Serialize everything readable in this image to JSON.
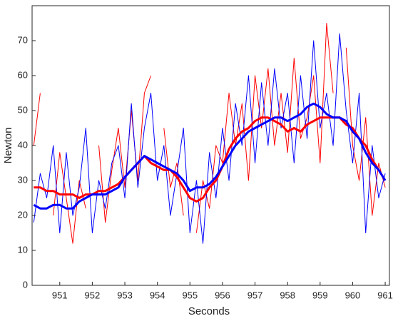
{
  "chart_data": {
    "type": "line",
    "x_label": "Seconds",
    "y_label": "Newton",
    "xlim": [
      950.15,
      961.13
    ],
    "ylim": [
      0,
      80
    ],
    "xticks": [
      951,
      952,
      953,
      954,
      955,
      956,
      957,
      958,
      959,
      960,
      961
    ],
    "yticks": [
      0,
      10,
      20,
      30,
      40,
      50,
      60,
      70
    ],
    "x": [
      950.2,
      950.4,
      950.6,
      950.8,
      951.0,
      951.2,
      951.4,
      951.6,
      951.8,
      952.0,
      952.2,
      952.4,
      952.6,
      952.8,
      953.0,
      953.2,
      953.4,
      953.6,
      953.8,
      954.0,
      954.2,
      954.4,
      954.6,
      954.8,
      955.0,
      955.2,
      955.4,
      955.6,
      955.8,
      956.0,
      956.2,
      956.4,
      956.6,
      956.8,
      957.0,
      957.2,
      957.4,
      957.6,
      957.8,
      958.0,
      958.2,
      958.4,
      958.6,
      958.8,
      959.0,
      959.2,
      959.4,
      959.6,
      959.8,
      960.0,
      960.2,
      960.4,
      960.6,
      960.8,
      961.0
    ],
    "series": [
      {
        "color": "#ff0000",
        "linewidth": 1,
        "values": [
          40,
          55,
          null,
          20,
          38,
          25,
          12,
          30,
          22,
          null,
          40,
          18,
          33,
          45,
          28,
          50,
          30,
          55,
          60,
          null,
          45,
          28,
          35,
          20,
          null,
          15,
          30,
          22,
          40,
          35,
          55,
          40,
          52,
          30,
          60,
          45,
          62,
          40,
          55,
          38,
          65,
          42,
          48,
          60,
          35,
          75,
          55,
          null,
          68,
          40,
          30,
          48,
          20,
          35,
          28
        ]
      },
      {
        "color": "#0000ff",
        "linewidth": 1,
        "values": [
          18,
          32,
          25,
          40,
          15,
          38,
          20,
          28,
          45,
          15,
          30,
          22,
          35,
          40,
          25,
          52,
          28,
          45,
          55,
          30,
          40,
          20,
          32,
          45,
          15,
          30,
          12,
          38,
          25,
          45,
          30,
          52,
          40,
          60,
          35,
          58,
          40,
          62,
          45,
          55,
          35,
          60,
          42,
          70,
          45,
          55,
          40,
          72,
          50,
          35,
          55,
          15,
          40,
          25,
          32
        ]
      },
      {
        "color": "#ff0000",
        "linewidth": 3,
        "values": [
          28,
          28,
          27,
          27,
          26,
          26,
          26,
          25,
          26,
          26,
          27,
          27,
          28,
          29,
          31,
          33,
          35,
          37,
          35,
          34,
          33,
          33,
          31,
          28,
          25,
          24,
          25,
          28,
          30,
          34,
          39,
          42,
          44,
          45,
          47,
          48,
          48,
          47,
          46,
          44,
          45,
          44,
          46,
          47,
          48,
          48,
          48,
          48,
          46,
          45,
          42,
          40,
          36,
          33,
          30
        ]
      },
      {
        "color": "#0000ff",
        "linewidth": 3,
        "values": [
          23,
          22,
          22,
          23,
          23,
          22,
          22,
          24,
          25,
          26,
          26,
          26,
          27,
          28,
          31,
          33,
          35,
          37,
          36,
          35,
          34,
          33,
          32,
          30,
          27,
          28,
          28,
          29,
          31,
          34,
          37,
          40,
          42,
          44,
          45,
          46,
          47,
          48,
          48,
          47,
          48,
          49,
          51,
          52,
          51,
          49,
          48,
          48,
          47,
          44,
          42,
          38,
          35,
          33,
          30
        ]
      }
    ]
  }
}
